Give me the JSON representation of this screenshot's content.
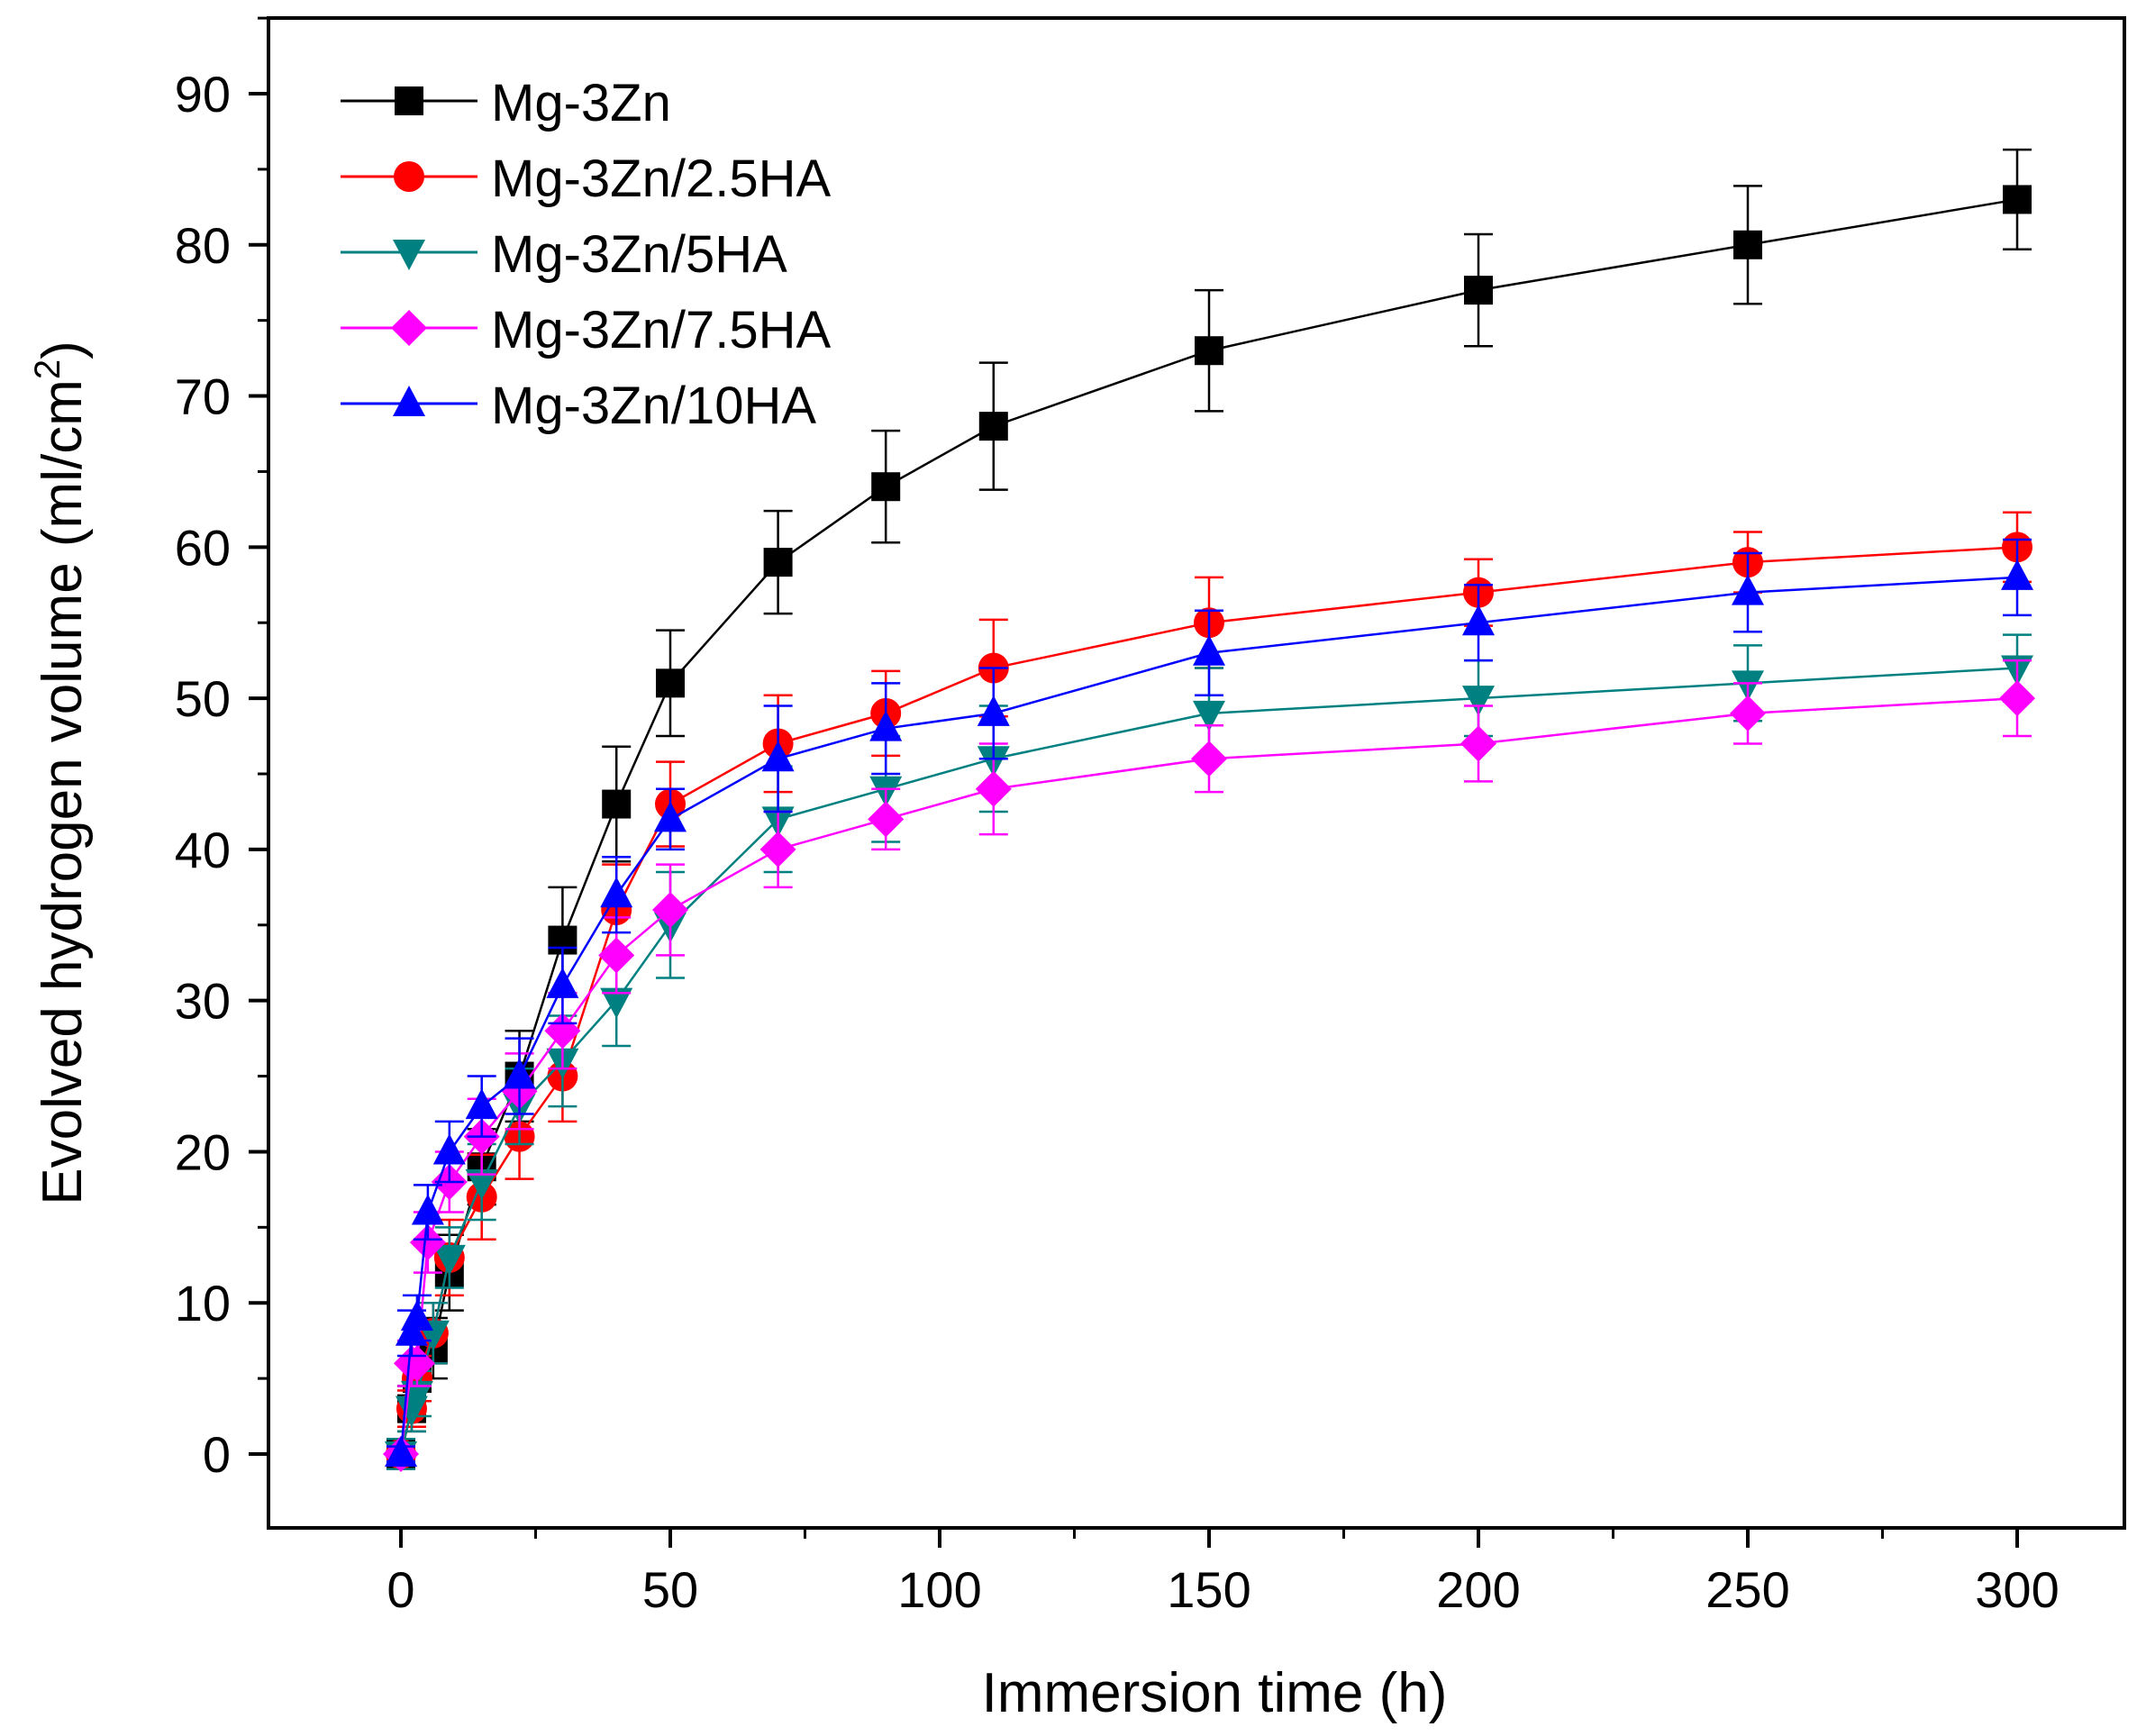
{
  "chart_data": {
    "type": "line",
    "title": "",
    "xlabel": "Immersion time (h)",
    "ylabel_main": "Evolved hydrogen volume (ml/cm",
    "ylabel_sup": "2",
    "ylabel_end": ")",
    "xlim": [
      -25,
      320
    ],
    "ylim": [
      -5,
      95
    ],
    "xticks": [
      0,
      50,
      100,
      150,
      200,
      250,
      300
    ],
    "xtick_labels": [
      "0",
      "50",
      "100",
      "150",
      "200",
      "250",
      "300"
    ],
    "yticks": [
      0,
      10,
      20,
      30,
      40,
      50,
      60,
      70,
      80,
      90
    ],
    "ytick_labels": [
      "0",
      "10",
      "20",
      "30",
      "40",
      "50",
      "60",
      "70",
      "80",
      "90"
    ],
    "legend_position": "top-left",
    "grid": false,
    "series": [
      {
        "name": "Mg-3Zn",
        "color": "#000000",
        "marker": "square",
        "x": [
          0,
          2,
          3,
          6,
          9,
          15,
          22,
          30,
          40,
          50,
          70,
          90,
          110,
          150,
          200,
          250,
          300
        ],
        "y": [
          0,
          3,
          5,
          7,
          12,
          19,
          25,
          34,
          43,
          51,
          59,
          64,
          68,
          73,
          77,
          80,
          83
        ],
        "err": [
          0.5,
          1.5,
          1.5,
          2,
          2.5,
          2.5,
          3,
          3.5,
          3.8,
          3.5,
          3.4,
          3.7,
          4.2,
          4,
          3.7,
          3.9,
          3.3
        ]
      },
      {
        "name": "Mg-3Zn/2.5HA",
        "color": "#ff0000",
        "marker": "circle",
        "x": [
          0,
          2,
          3,
          6,
          9,
          15,
          22,
          30,
          40,
          50,
          70,
          90,
          110,
          150,
          200,
          250,
          300
        ],
        "y": [
          0,
          3,
          5,
          8,
          13,
          17,
          21,
          25,
          36,
          43,
          47,
          49,
          52,
          55,
          57,
          59,
          60
        ],
        "err": [
          0.5,
          1.2,
          1.5,
          2,
          2.5,
          2.8,
          2.8,
          3,
          3,
          2.8,
          3.2,
          2.8,
          3.2,
          3,
          2.2,
          2,
          2.3
        ]
      },
      {
        "name": "Mg-3Zn/5HA",
        "color": "#008080",
        "marker": "triangle-down",
        "x": [
          0,
          2,
          3,
          6,
          9,
          15,
          22,
          30,
          40,
          50,
          70,
          90,
          110,
          150,
          200,
          250,
          300
        ],
        "y": [
          0,
          3,
          4,
          8,
          13,
          18,
          23,
          26,
          30,
          35,
          42,
          44,
          46,
          49,
          50,
          51,
          52
        ],
        "err": [
          1,
          1.5,
          1.5,
          2,
          2,
          2.5,
          2.5,
          3,
          3,
          3.5,
          3.5,
          3.5,
          3.5,
          3,
          2.5,
          2.5,
          2.2
        ]
      },
      {
        "name": "Mg-3Zn/7.5HA",
        "color": "#ff00ff",
        "marker": "diamond",
        "x": [
          0,
          2,
          3,
          5,
          9,
          15,
          22,
          30,
          40,
          50,
          70,
          90,
          110,
          150,
          200,
          250,
          300
        ],
        "y": [
          0,
          6,
          6,
          14,
          18,
          21,
          24,
          28,
          33,
          36,
          40,
          42,
          44,
          46,
          47,
          49,
          50
        ],
        "err": [
          0.5,
          1.5,
          1.5,
          2,
          2,
          2.5,
          2.5,
          2.5,
          2.5,
          3,
          2.5,
          2,
          3,
          2.2,
          2.5,
          2,
          2.5
        ]
      },
      {
        "name": "Mg-3Zn/10HA",
        "color": "#0000ff",
        "marker": "triangle-up",
        "x": [
          0,
          2,
          3,
          5,
          9,
          15,
          22,
          30,
          40,
          50,
          70,
          90,
          110,
          150,
          200,
          250,
          300
        ],
        "y": [
          0,
          8,
          9,
          16,
          20,
          23,
          25,
          31,
          37,
          42,
          46,
          48,
          49,
          53,
          55,
          57,
          58
        ],
        "err": [
          0.5,
          1.5,
          1.5,
          1.8,
          2,
          2,
          2.5,
          2.5,
          2.5,
          2,
          3.5,
          3,
          3,
          2.8,
          2.5,
          2.6,
          2.5
        ]
      }
    ]
  }
}
